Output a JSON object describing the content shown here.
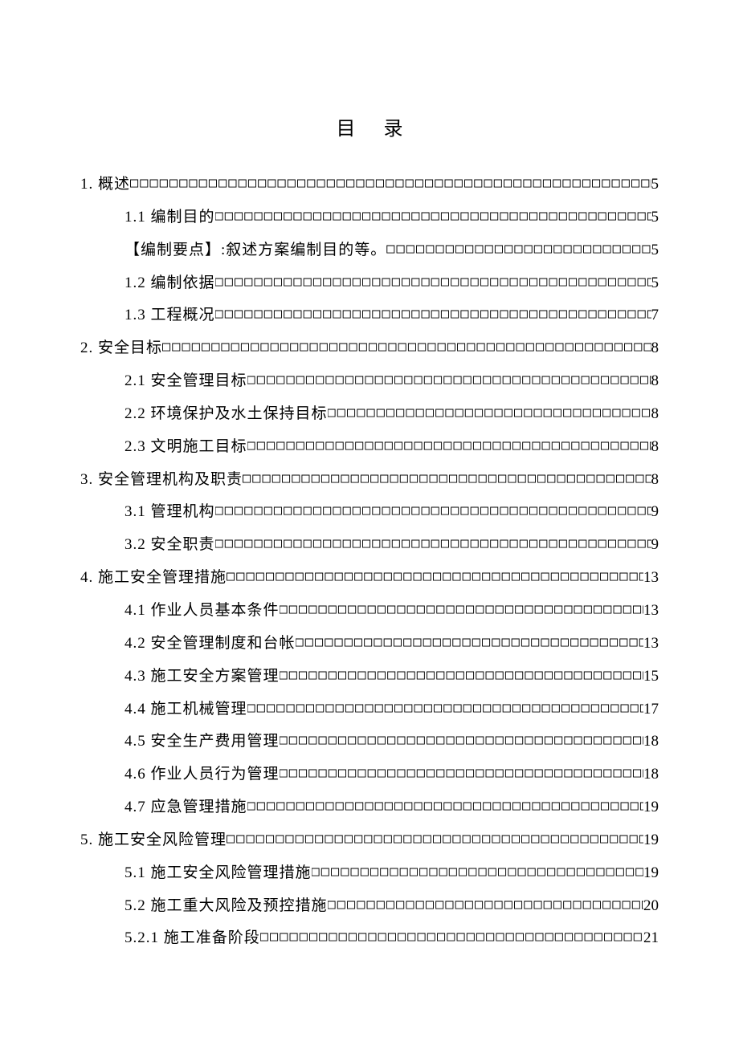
{
  "doc": {
    "title": "目录",
    "text_color": "#000000",
    "background_color": "#ffffff",
    "font_family": "SimSun",
    "title_fontsize": 24,
    "body_fontsize": 19,
    "line_height": 2.15,
    "leader_char": "□",
    "entries": [
      {
        "level": 0,
        "text": "1. 概述",
        "page": "5"
      },
      {
        "level": 1,
        "text": "1.1 编制目的",
        "page": "5"
      },
      {
        "level": 1,
        "text": "【编制要点】:叙述方案编制目的等。",
        "page": "5"
      },
      {
        "level": 1,
        "text": "1.2 编制依据",
        "page": "5"
      },
      {
        "level": 1,
        "text": "1.3 工程概况",
        "page": "7"
      },
      {
        "level": 0,
        "text": "2. 安全目标",
        "page": "8"
      },
      {
        "level": 1,
        "text": "2.1 安全管理目标",
        "page": "8"
      },
      {
        "level": 1,
        "text": "2.2 环境保护及水土保持目标",
        "page": "8"
      },
      {
        "level": 1,
        "text": "2.3 文明施工目标",
        "page": "8"
      },
      {
        "level": 0,
        "text": "3. 安全管理机构及职责",
        "page": "8"
      },
      {
        "level": 1,
        "text": "3.1 管理机构",
        "page": "9"
      },
      {
        "level": 1,
        "text": "3.2 安全职责",
        "page": "9"
      },
      {
        "level": 0,
        "text": "4. 施工安全管理措施",
        "page": "13"
      },
      {
        "level": 1,
        "text": "4.1 作业人员基本条件",
        "page": "13"
      },
      {
        "level": 1,
        "text": "4.2 安全管理制度和台帐",
        "page": "13"
      },
      {
        "level": 1,
        "text": "4.3 施工安全方案管理",
        "page": "15"
      },
      {
        "level": 1,
        "text": "4.4 施工机械管理",
        "page": "17"
      },
      {
        "level": 1,
        "text": "4.5 安全生产费用管理",
        "page": "18"
      },
      {
        "level": 1,
        "text": "4.6 作业人员行为管理",
        "page": "18"
      },
      {
        "level": 1,
        "text": "4.7 应急管理措施",
        "page": "19"
      },
      {
        "level": 0,
        "text": "5. 施工安全风险管理",
        "page": "19"
      },
      {
        "level": 1,
        "text": "5.1 施工安全风险管理措施",
        "page": "19"
      },
      {
        "level": 1,
        "text": "5.2 施工重大风险及预控措施",
        "page": "20"
      },
      {
        "level": 1,
        "text": "5.2.1 施工准备阶段",
        "page": "21"
      }
    ]
  }
}
